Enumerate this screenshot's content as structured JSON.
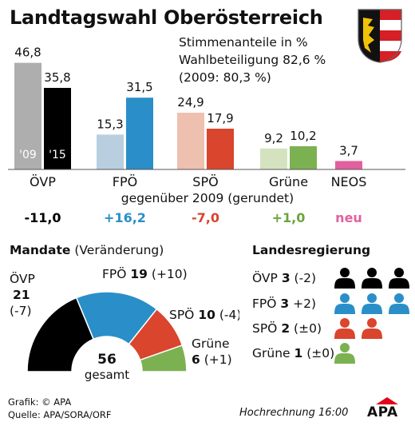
{
  "title": "Landtagswahl Oberösterreich",
  "info": {
    "line1": "Stimmenanteile in %",
    "line2": "Wahlbeteiligung 82,6 %",
    "line3": "(2009: 80,3 %)"
  },
  "colors": {
    "ÖVP": {
      "2009": "#aeaeae",
      "2015": "#000000",
      "change": "#000000"
    },
    "FPÖ": {
      "2009": "#b9cfe0",
      "2015": "#2a8fc8",
      "change": "#2a8fc8"
    },
    "SPÖ": {
      "2009": "#eec0b0",
      "2015": "#d9452d",
      "change": "#d9452d"
    },
    "Grüne": {
      "2009": "#d5e2c0",
      "2015": "#7cb151",
      "change": "#6aa53c"
    },
    "NEOS": {
      "2015": "#e2609e",
      "change": "#e2609e"
    }
  },
  "chart_data": [
    {
      "type": "bar",
      "categories": [
        "ÖVP",
        "FPÖ",
        "SPÖ",
        "Grüne",
        "NEOS"
      ],
      "series": [
        {
          "name": "'09",
          "values": [
            46.8,
            15.3,
            24.9,
            9.2,
            null
          ],
          "labels": [
            "46,8",
            "15,3",
            "24,9",
            "9,2",
            ""
          ]
        },
        {
          "name": "'15",
          "values": [
            35.8,
            31.5,
            17.9,
            10.2,
            3.7
          ],
          "labels": [
            "35,8",
            "31,5",
            "17,9",
            "10,2",
            "3,7"
          ]
        }
      ],
      "change_caption": "gegenüber 2009 (gerundet)",
      "changes": [
        "-11,0",
        "+16,2",
        "-7,0",
        "+1,0",
        "neu"
      ]
    },
    {
      "type": "pie",
      "style": "half-donut",
      "title": "Mandate",
      "subtitle": "(Veränderung)",
      "total": "56",
      "total_label": "gesamt",
      "slices": [
        {
          "party": "ÖVP",
          "seats": 21,
          "seats_label": "21",
          "change": "(-7)",
          "color": "#000000"
        },
        {
          "party": "FPÖ",
          "seats": 19,
          "seats_label": "19",
          "change": "(+10)",
          "color": "#2a8fc8"
        },
        {
          "party": "SPÖ",
          "seats": 10,
          "seats_label": "10",
          "change": "(-4)",
          "color": "#d9452d"
        },
        {
          "party": "Grüne",
          "seats": 6,
          "seats_label": "6",
          "change": "(+1)",
          "color": "#7cb151"
        }
      ]
    },
    {
      "type": "table",
      "title": "Landesregierung",
      "rows": [
        {
          "party": "ÖVP",
          "count": 3,
          "count_label": "3",
          "change": "(-2)",
          "color": "#000000"
        },
        {
          "party": "FPÖ",
          "count": 3,
          "count_label": "3",
          "change": "+2)",
          "color": "#2a8fc8"
        },
        {
          "party": "SPÖ",
          "count": 2,
          "count_label": "2",
          "change": "(±0)",
          "color": "#d9452d"
        },
        {
          "party": "Grüne",
          "count": 1,
          "count_label": "1",
          "change": "(±0)",
          "color": "#7cb151"
        }
      ]
    }
  ],
  "footer": {
    "credit": "Grafik: © APA",
    "source": "Quelle: APA/SORA/ORF",
    "note": "Hochrechnung 16:00",
    "logo": "APA"
  }
}
